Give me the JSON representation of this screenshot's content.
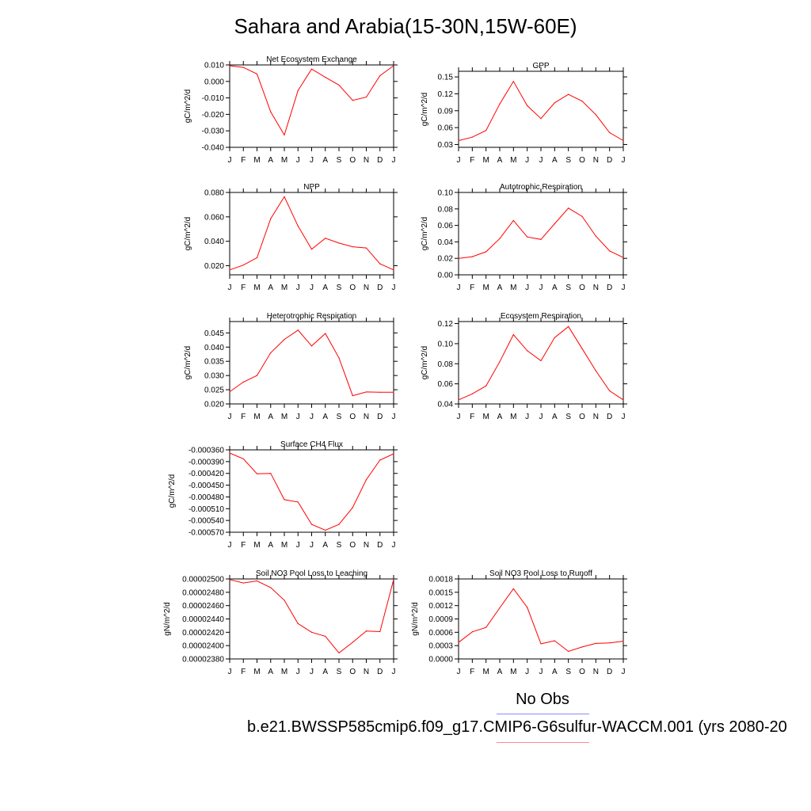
{
  "title": "Sahara and Arabia(15-30N,15W-60E)",
  "legend": {
    "no_obs": "No Obs",
    "case_label": "b.e21.BWSSP585cmip6.f09_g17.CMIP6-G6sulfur-WACCM.001 (yrs 2080-20",
    "obs_color": "#8a8aff",
    "model_color": "#ff8a8a"
  },
  "line_color": "#ff0000",
  "chart_data": [
    {
      "type": "line",
      "title": "Net Ecosystem Exchange",
      "ylabel": "gC/m^2/d",
      "x": [
        "J",
        "F",
        "M",
        "A",
        "M",
        "J",
        "J",
        "A",
        "S",
        "O",
        "N",
        "D",
        "J"
      ],
      "ylim": [
        -0.04,
        0.01
      ],
      "yticks": [
        -0.04,
        -0.03,
        -0.02,
        -0.01,
        0.0,
        0.01
      ],
      "ytick_labels": [
        "-0.040",
        "-0.030",
        "-0.020",
        "-0.010",
        "0.000",
        "0.010"
      ],
      "values": [
        0.0095,
        0.0085,
        0.0045,
        -0.0185,
        -0.0325,
        -0.0055,
        0.0075,
        0.0025,
        -0.0022,
        -0.0115,
        -0.0095,
        0.0035,
        0.0095
      ]
    },
    {
      "type": "line",
      "title": "GPP",
      "ylabel": "gC/m^2/d",
      "x": [
        "J",
        "F",
        "M",
        "A",
        "M",
        "J",
        "J",
        "A",
        "S",
        "O",
        "N",
        "D",
        "J"
      ],
      "ylim": [
        0.025,
        0.16
      ],
      "yticks": [
        0.03,
        0.06,
        0.09,
        0.12,
        0.15
      ],
      "ytick_labels": [
        "0.03",
        "0.06",
        "0.09",
        "0.12",
        "0.15"
      ],
      "values": [
        0.037,
        0.043,
        0.055,
        0.102,
        0.142,
        0.099,
        0.076,
        0.104,
        0.119,
        0.107,
        0.083,
        0.051,
        0.037
      ]
    },
    {
      "type": "line",
      "title": "NPP",
      "ylabel": "gC/m^2/d",
      "x": [
        "J",
        "F",
        "M",
        "A",
        "M",
        "J",
        "J",
        "A",
        "S",
        "O",
        "N",
        "D",
        "J"
      ],
      "ylim": [
        0.0125,
        0.08
      ],
      "yticks": [
        0.02,
        0.04,
        0.06,
        0.08
      ],
      "ytick_labels": [
        "0.020",
        "0.040",
        "0.060",
        "0.080"
      ],
      "values": [
        0.0165,
        0.0205,
        0.0265,
        0.0585,
        0.0765,
        0.0525,
        0.0335,
        0.0425,
        0.0385,
        0.0355,
        0.0345,
        0.0215,
        0.0165
      ]
    },
    {
      "type": "line",
      "title": "Autotrophic Respiration",
      "ylabel": "gC/m^2/d",
      "x": [
        "J",
        "F",
        "M",
        "A",
        "M",
        "J",
        "J",
        "A",
        "S",
        "O",
        "N",
        "D",
        "J"
      ],
      "ylim": [
        0.0,
        0.1
      ],
      "yticks": [
        0.0,
        0.02,
        0.04,
        0.06,
        0.08,
        0.1
      ],
      "ytick_labels": [
        "0.00",
        "0.02",
        "0.04",
        "0.06",
        "0.08",
        "0.10"
      ],
      "values": [
        0.02,
        0.022,
        0.028,
        0.044,
        0.066,
        0.046,
        0.043,
        0.062,
        0.081,
        0.071,
        0.047,
        0.029,
        0.021
      ]
    },
    {
      "type": "line",
      "title": "Heterotrophic Respiration",
      "ylabel": "gC/m^2/d",
      "x": [
        "J",
        "F",
        "M",
        "A",
        "M",
        "J",
        "J",
        "A",
        "S",
        "O",
        "N",
        "D",
        "J"
      ],
      "ylim": [
        0.02,
        0.049
      ],
      "yticks": [
        0.02,
        0.025,
        0.03,
        0.035,
        0.04,
        0.045
      ],
      "ytick_labels": [
        "0.020",
        "0.025",
        "0.030",
        "0.035",
        "0.040",
        "0.045"
      ],
      "values": [
        0.0243,
        0.0277,
        0.03,
        0.038,
        0.0427,
        0.046,
        0.0404,
        0.0448,
        0.0362,
        0.0229,
        0.0242,
        0.0241,
        0.0241
      ]
    },
    {
      "type": "line",
      "title": "Ecosystem Respiration",
      "ylabel": "gC/m^2/d",
      "x": [
        "J",
        "F",
        "M",
        "A",
        "M",
        "J",
        "J",
        "A",
        "S",
        "O",
        "N",
        "D",
        "J"
      ],
      "ylim": [
        0.04,
        0.122
      ],
      "yticks": [
        0.04,
        0.06,
        0.08,
        0.1,
        0.12
      ],
      "ytick_labels": [
        "0.04",
        "0.06",
        "0.08",
        "0.10",
        "0.12"
      ],
      "values": [
        0.044,
        0.05,
        0.058,
        0.082,
        0.109,
        0.093,
        0.083,
        0.106,
        0.117,
        0.095,
        0.073,
        0.053,
        0.044
      ]
    },
    {
      "type": "line",
      "title": "Surface CH4 Flux",
      "ylabel": "gC/m^2/d",
      "x": [
        "J",
        "F",
        "M",
        "A",
        "M",
        "J",
        "J",
        "A",
        "S",
        "O",
        "N",
        "D",
        "J"
      ],
      "ylim": [
        -0.00057,
        -0.00036
      ],
      "yticks": [
        -0.00057,
        -0.00054,
        -0.00051,
        -0.00048,
        -0.00045,
        -0.00042,
        -0.00039,
        -0.00036
      ],
      "ytick_labels": [
        "-0.000570",
        "-0.000540",
        "-0.000510",
        "-0.000480",
        "-0.000450",
        "-0.000420",
        "-0.000390",
        "-0.000360"
      ],
      "values": [
        -0.000368,
        -0.000383,
        -0.000421,
        -0.00042,
        -0.000487,
        -0.000493,
        -0.00055,
        -0.000565,
        -0.00055,
        -0.000507,
        -0.000436,
        -0.000386,
        -0.00037
      ]
    },
    {
      "type": "line",
      "title": "Soil NO3 Pool Loss to Leaching",
      "ylabel": "gN/m^2/d",
      "x": [
        "J",
        "F",
        "M",
        "A",
        "M",
        "J",
        "J",
        "A",
        "S",
        "O",
        "N",
        "D",
        "J"
      ],
      "ylim": [
        2.38e-05,
        2.5e-05
      ],
      "yticks": [
        2.38e-05,
        2.4e-05,
        2.42e-05,
        2.44e-05,
        2.46e-05,
        2.48e-05,
        2.5e-05
      ],
      "ytick_labels": [
        "0.00002380",
        "0.00002400",
        "0.00002420",
        "0.00002440",
        "0.00002460",
        "0.00002480",
        "0.00002500"
      ],
      "values": [
        2.499e-05,
        2.494e-05,
        2.497e-05,
        2.487e-05,
        2.468e-05,
        2.433e-05,
        2.42e-05,
        2.414e-05,
        2.389e-05,
        2.405e-05,
        2.422e-05,
        2.421e-05,
        2.499e-05
      ]
    },
    {
      "type": "line",
      "title": "Soil NO3 Pool Loss to Runoff",
      "ylabel": "gN/m^2/d",
      "x": [
        "J",
        "F",
        "M",
        "A",
        "M",
        "J",
        "J",
        "A",
        "S",
        "O",
        "N",
        "D",
        "J"
      ],
      "ylim": [
        0.0,
        0.0018
      ],
      "yticks": [
        0.0,
        0.0003,
        0.0006,
        0.0009,
        0.0012,
        0.0015,
        0.0018
      ],
      "ytick_labels": [
        "0.0000",
        "0.0003",
        "0.0006",
        "0.0009",
        "0.0012",
        "0.0015",
        "0.0018"
      ],
      "values": [
        0.00037,
        0.00061,
        0.00071,
        0.00115,
        0.00158,
        0.00116,
        0.00034,
        0.00041,
        0.00017,
        0.00027,
        0.00035,
        0.00036,
        0.0004
      ]
    }
  ]
}
